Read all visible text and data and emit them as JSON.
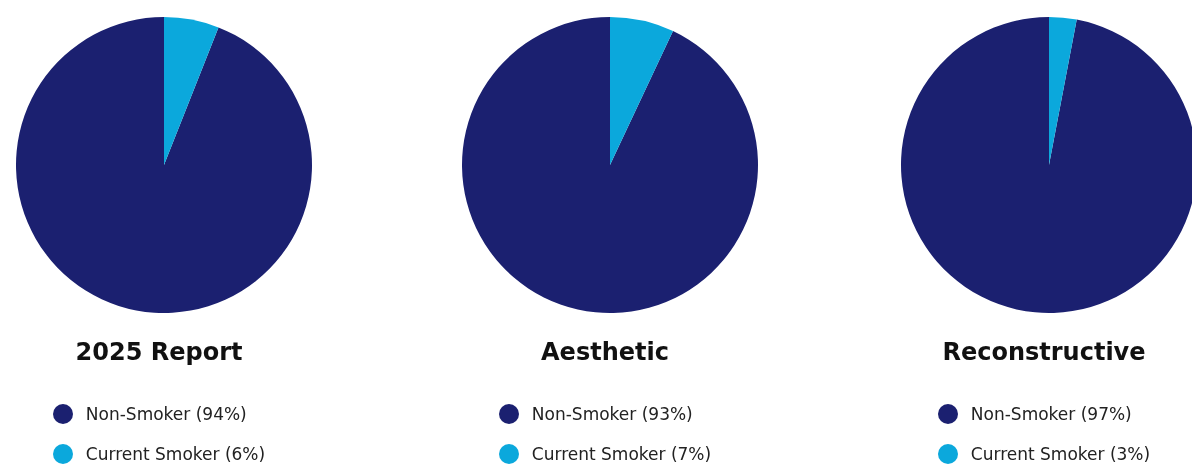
{
  "chart_data": [
    {
      "type": "pie",
      "title": "2025 Report",
      "categories": [
        "Non-Smoker (94%)",
        "Current Smoker (6%)"
      ],
      "values": [
        94,
        6
      ],
      "colors": [
        "#1b2070",
        "#0ba8dc"
      ],
      "legend": "bottom"
    },
    {
      "type": "pie",
      "title": "Aesthetic",
      "categories": [
        "Non-Smoker (93%)",
        "Current Smoker (7%)"
      ],
      "values": [
        93,
        7
      ],
      "colors": [
        "#1b2070",
        "#0ba8dc"
      ],
      "legend": "bottom"
    },
    {
      "type": "pie",
      "title": "Reconstructive",
      "categories": [
        "Non-Smoker (97%)",
        "Current Smoker (3%)"
      ],
      "values": [
        97,
        3
      ],
      "colors": [
        "#1b2070",
        "#0ba8dc"
      ],
      "legend": "bottom"
    }
  ]
}
